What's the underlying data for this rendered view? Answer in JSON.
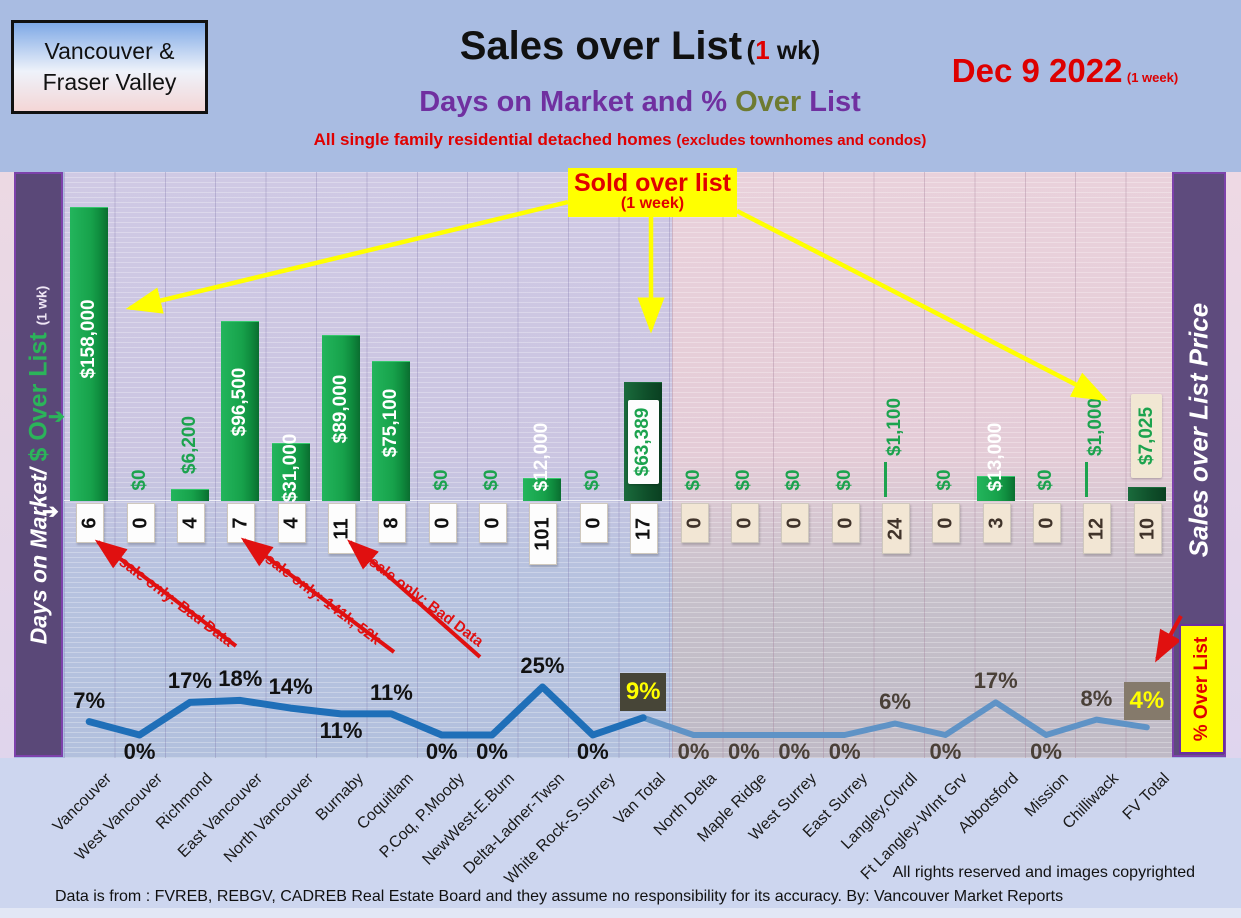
{
  "header": {
    "region_line1": "Vancouver &",
    "region_line2": "Fraser Valley",
    "title_main": "Sales over List",
    "title_paren_pre": "(",
    "title_paren_num": "1",
    "title_paren_post": " wk)",
    "subtitle_part1": "Days on Market and % ",
    "subtitle_part2": "Over",
    "subtitle_part3": " List",
    "tagline_main": "All single family residential detached homes ",
    "tagline_paren": "(excludes townhomes and condos)",
    "date": "Dec 9  2022",
    "date_note": "(1 week)"
  },
  "sidebars": {
    "left_part1": "Days on Market/ ",
    "left_part2": "$ Over List ",
    "left_part3": "(1 wk)",
    "right_label": "Sales over List Price",
    "pct_over_list_label": "% Over List"
  },
  "callout": {
    "line1": "Sold over list",
    "line2": "(1 week)"
  },
  "annotations": [
    "1 sale only: Bad Data",
    "2 sale only: 141k, 52k",
    "1 sale only: Bad Data"
  ],
  "footer": {
    "rights": "All rights reserved and  images copyrighted",
    "source": "Data is from : FVREB, REBGV, CADREB Real Estate Board and they assume no responsibility for its accuracy. By: Vancouver Market Reports"
  },
  "colors": {
    "bar_green": "#17a24b",
    "total_bar_green": "#0f4f2a",
    "dollar_label_green": "#1ca34e",
    "accent_yellow": "#ffff00",
    "accent_red": "#e00000",
    "sidebar_purple": "#5a4878",
    "line_blue_van": "#1f6fb8",
    "line_blue_fv": "#5f93c6",
    "pct_box_dark": "#474537",
    "pct_box_brown": "#857a6b"
  },
  "chart_data": {
    "type": "bar",
    "title": "Sales over List (1 wk) - Days on Market and % Over List",
    "date": "Dec 9 2022 (1 week)",
    "categories": [
      "Vancouver",
      "West Vancouver",
      "Richmond",
      "East Vancouver",
      "North Vancouver",
      "Burnaby",
      "Coquitlam",
      "P.Coq, P.Moody",
      "NewWest-E.Burn",
      "Delta-Ladner-Twsn",
      "White Rock-S.Surrey",
      "Van Total",
      "North Delta",
      "Maple Ridge",
      "West Surrey",
      "East Surrey",
      "Langley,Clvrdl",
      "Ft Langley-WInt Grv",
      "Abbotsford",
      "Mission",
      "Chilliwack",
      "FV Total"
    ],
    "series": [
      {
        "name": "$ Over List (1 wk)",
        "type": "bar",
        "values": [
          158000,
          0,
          6200,
          96500,
          31000,
          89000,
          75100,
          0,
          0,
          12000,
          0,
          63389,
          0,
          0,
          0,
          0,
          1100,
          0,
          13000,
          0,
          1000,
          7025
        ],
        "labels": [
          "$158,000",
          "$0",
          "$6,200",
          "$96,500",
          "$31,000",
          "$89,000",
          "$75,100",
          "$0",
          "$0",
          "$12,000",
          "$0",
          "$63,389",
          "$0",
          "$0",
          "$0",
          "$0",
          "$1,100",
          "$0",
          "$13,000",
          "$0",
          "$1,000",
          "$7,025"
        ]
      },
      {
        "name": "Days on Market",
        "type": "table",
        "values": [
          "6",
          "0",
          "4",
          "7",
          "4",
          "11",
          "8",
          "0",
          "0",
          "101",
          "0",
          "17",
          "0",
          "0",
          "0",
          "0",
          "24",
          "0",
          "3",
          "0",
          "12",
          "10"
        ]
      },
      {
        "name": "% Over List",
        "type": "line",
        "values": [
          7,
          0,
          17,
          18,
          14,
          11,
          11,
          0,
          0,
          25,
          0,
          9,
          0,
          0,
          0,
          0,
          6,
          0,
          17,
          0,
          8,
          4
        ],
        "labels": [
          "7%",
          "0%",
          "17%",
          "18%",
          "14%",
          "11%",
          "11%",
          "0%",
          "0%",
          "25%",
          "0%",
          "9%",
          "0%",
          "0%",
          "0%",
          "0%",
          "6%",
          "0%",
          "17%",
          "0%",
          "8%",
          "4%"
        ]
      }
    ],
    "pct_label_position": [
      "above",
      "below",
      "above",
      "above",
      "above",
      "below",
      "above",
      "below",
      "below",
      "above",
      "below",
      "above",
      "below",
      "below",
      "below",
      "below",
      "above",
      "below",
      "above",
      "below",
      "above",
      "above"
    ],
    "totals_indices": [
      11,
      21
    ],
    "van_region_count": 12,
    "ylim_dollars": [
      0,
      170000
    ],
    "grid": "vertical+fine-horizontal",
    "legend_position": "none"
  }
}
